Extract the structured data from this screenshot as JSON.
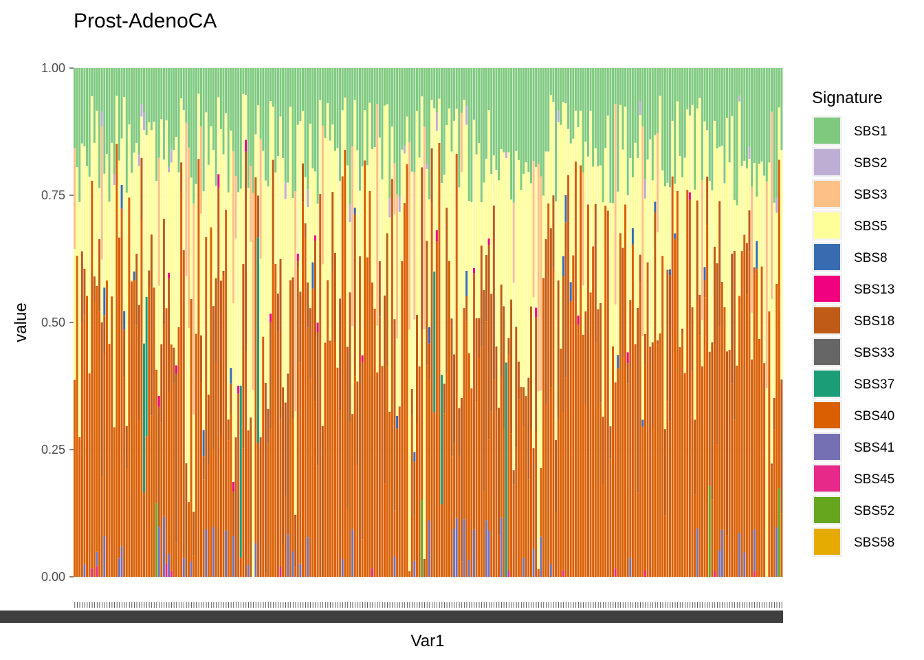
{
  "chart_data": {
    "type": "bar",
    "stacked": true,
    "title": "Prost-AdenoCA",
    "xlabel": "Var1",
    "ylabel": "value",
    "ylim": [
      0,
      1
    ],
    "yticks": [
      "0.00",
      "0.25",
      "0.50",
      "0.75",
      "1.00"
    ],
    "ytick_values": [
      0,
      0.25,
      0.5,
      0.75,
      1
    ],
    "x_tick_labels_legible": false,
    "n_samples": 286,
    "grid": true,
    "legend": {
      "title": "Signature",
      "placement": "right",
      "entries": [
        {
          "name": "SBS1",
          "color": "#7FC97F"
        },
        {
          "name": "SBS2",
          "color": "#BEAED4"
        },
        {
          "name": "SBS3",
          "color": "#FDC086"
        },
        {
          "name": "SBS5",
          "color": "#FFFF99"
        },
        {
          "name": "SBS8",
          "color": "#386CB0"
        },
        {
          "name": "SBS13",
          "color": "#F0027F"
        },
        {
          "name": "SBS18",
          "color": "#BF5B17"
        },
        {
          "name": "SBS33",
          "color": "#666666"
        },
        {
          "name": "SBS37",
          "color": "#1B9E77"
        },
        {
          "name": "SBS40",
          "color": "#D95F02"
        },
        {
          "name": "SBS41",
          "color": "#7570B3"
        },
        {
          "name": "SBS45",
          "color": "#E7298A"
        },
        {
          "name": "SBS52",
          "color": "#66A61E"
        },
        {
          "name": "SBS58",
          "color": "#E6AB02"
        }
      ]
    },
    "stack_order_bottom_to_top": [
      "SBS58",
      "SBS52",
      "SBS45",
      "SBS41",
      "SBS40",
      "SBS37",
      "SBS33",
      "SBS18",
      "SBS13",
      "SBS8",
      "SBS5",
      "SBS3",
      "SBS2",
      "SBS1"
    ],
    "value_summary": {
      "SBS1": {
        "typical_range": [
          0.05,
          0.25
        ]
      },
      "SBS5": {
        "typical_range": [
          0.1,
          0.45
        ]
      },
      "SBS40": {
        "typical_range": [
          0.1,
          0.55
        ]
      },
      "SBS18": {
        "typical_range": [
          0.0,
          0.4
        ]
      },
      "SBS3": {
        "typical_range": [
          0.0,
          0.5
        ]
      }
    }
  }
}
